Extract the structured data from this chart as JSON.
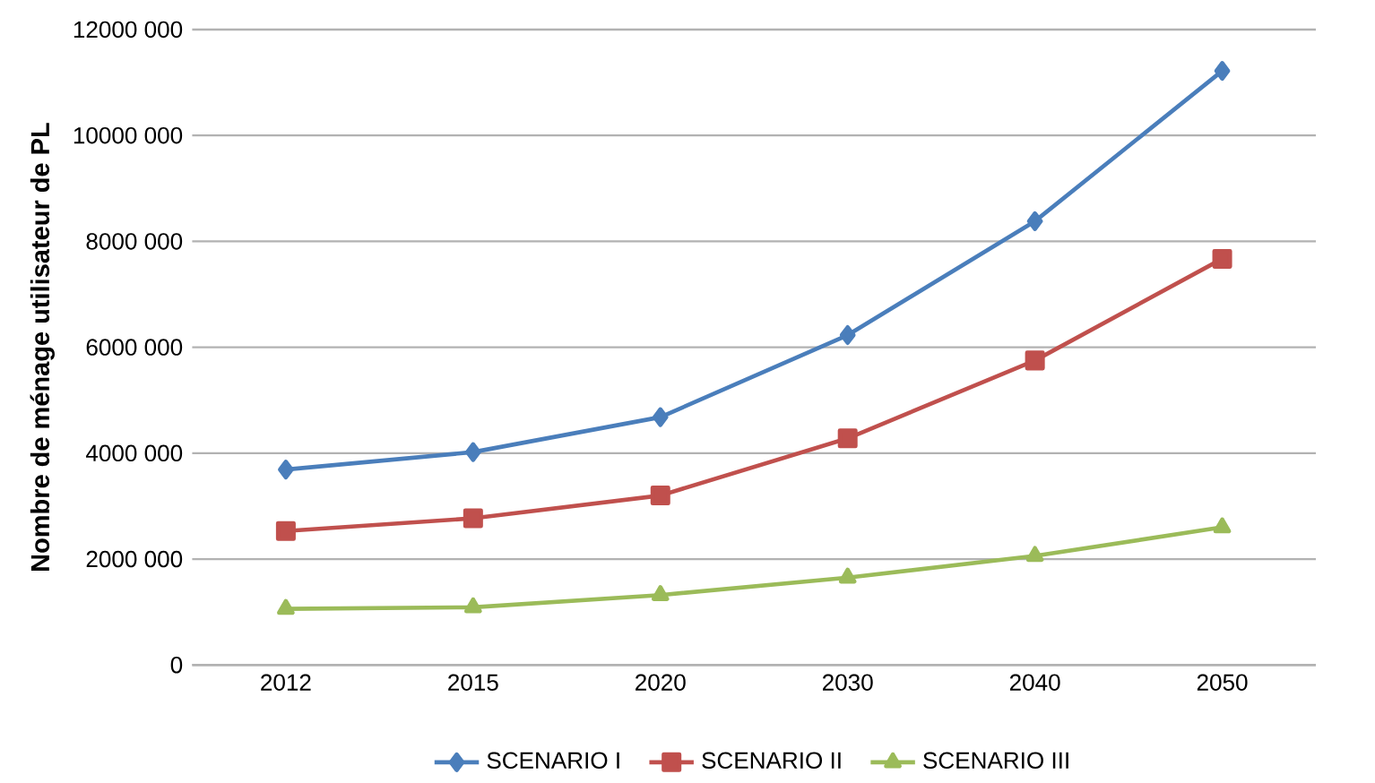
{
  "chart_data": {
    "type": "line",
    "ylabel": "Nombre de ménage utilisateur de PL",
    "categories": [
      "2012",
      "2015",
      "2020",
      "2030",
      "2040",
      "2050"
    ],
    "series": [
      {
        "name": "SCENARIO I",
        "color": "#4a7ebb",
        "marker": "diamond",
        "values": [
          3690000,
          4020000,
          4680000,
          6230000,
          8380000,
          11220000
        ]
      },
      {
        "name": "SCENARIO II",
        "color": "#c0504d",
        "marker": "square",
        "values": [
          2530000,
          2770000,
          3200000,
          4280000,
          5750000,
          7670000
        ]
      },
      {
        "name": "SCENARIO III",
        "color": "#9bbb59",
        "marker": "triangle",
        "values": [
          1060000,
          1090000,
          1320000,
          1650000,
          2060000,
          2600000
        ]
      }
    ],
    "ylim": [
      0,
      12000000
    ],
    "yticks": [
      0,
      {
        "value": 2000000,
        "label": "2000 000"
      },
      {
        "value": 4000000,
        "label": "4000 000"
      },
      {
        "value": 6000000,
        "label": "6000 000"
      },
      {
        "value": 8000000,
        "label": "8000 000"
      },
      {
        "value": 10000000,
        "label": "10000 000"
      },
      {
        "value": 12000000,
        "label": "12000 000"
      }
    ],
    "grid": "y",
    "legend": "bottom"
  }
}
